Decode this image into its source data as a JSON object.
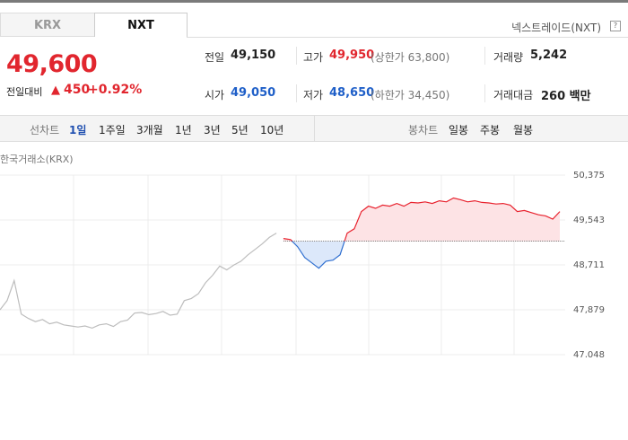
{
  "tabs": [
    "KRX",
    "NXT"
  ],
  "market_label": "넥스트레이드(NXT)",
  "help_icon": "?",
  "price": "49,600",
  "change_label": "전일대비",
  "change_arrow": "▲",
  "change": "450",
  "change_pct": "+0.92%",
  "stats": [
    {
      "label": "전일",
      "value": "49,150"
    },
    {
      "label": "고가",
      "value": "49,950",
      "note": "(상한가 63,800)"
    },
    {
      "label": "거래량",
      "value": "5,242"
    },
    {
      "label": "시가",
      "value": "49,050"
    },
    {
      "label": "저가",
      "value": "48,650",
      "note": "(하한가 34,450)"
    },
    {
      "label": "거래대금",
      "value": "260 백만"
    }
  ],
  "line_chart_label": "선차트",
  "periods": [
    "1일",
    "1주일",
    "3개월",
    "1년",
    "3년",
    "5년",
    "10년"
  ],
  "candle_chart_label": "봉차트",
  "candle_periods": [
    "일봉",
    "주봉",
    "월봉"
  ],
  "chart_data": {
    "type": "line",
    "source_label": "한국거래소(KRX)",
    "ylim": [
      47048,
      50375
    ],
    "yticks": [
      {
        "value": 50375,
        "label": "50,375"
      },
      {
        "value": 49543,
        "label": "49,543"
      },
      {
        "value": 48711,
        "label": "48,711"
      },
      {
        "value": 47879,
        "label": "47,879"
      },
      {
        "value": 47048,
        "label": "47,048"
      }
    ],
    "baseline": 49150,
    "up_color": "#e8222e",
    "down_color": "#2f6fd0",
    "up_fill": "#fde3e5",
    "down_fill": "#dce8fa",
    "series": [
      {
        "color": "#bdbdbd",
        "values": [
          47880,
          48050,
          48420,
          47800,
          47720,
          47660,
          47700,
          47620,
          47650,
          47600,
          47580,
          47560,
          47580,
          47540,
          47600,
          47620,
          47570,
          47660,
          47690,
          47820,
          47830,
          47790,
          47810,
          47850,
          47780,
          47800,
          48050,
          48090,
          48180,
          48380,
          48520,
          48690,
          48620,
          48710,
          48780,
          48900,
          49000,
          49100,
          49220,
          49300,
          null,
          null,
          null,
          null,
          null,
          null,
          null,
          null,
          null,
          null,
          null,
          null,
          null,
          null,
          null,
          null,
          null,
          null,
          null,
          null,
          null,
          null,
          null,
          null,
          null,
          null,
          null,
          null,
          null,
          null,
          null,
          null,
          null,
          null,
          null,
          null,
          null,
          null,
          null,
          null
        ]
      },
      {
        "values": [
          null,
          null,
          null,
          null,
          null,
          null,
          null,
          null,
          null,
          null,
          null,
          null,
          null,
          null,
          null,
          null,
          null,
          null,
          null,
          null,
          null,
          null,
          null,
          null,
          null,
          null,
          null,
          null,
          null,
          null,
          null,
          null,
          null,
          null,
          null,
          null,
          null,
          null,
          null,
          null,
          49200,
          49180,
          49050,
          48850,
          48750,
          48650,
          48780,
          48800,
          48900,
          49300,
          49380,
          49700,
          49800,
          49760,
          49820,
          49800,
          49850,
          49800,
          49870,
          49860,
          49880,
          49850,
          49900,
          49880,
          49950,
          49920,
          49880,
          49900,
          49870,
          49860,
          49840,
          49850,
          49820,
          49700,
          49720,
          49680,
          49640,
          49620,
          49560,
          49700
        ]
      }
    ]
  }
}
